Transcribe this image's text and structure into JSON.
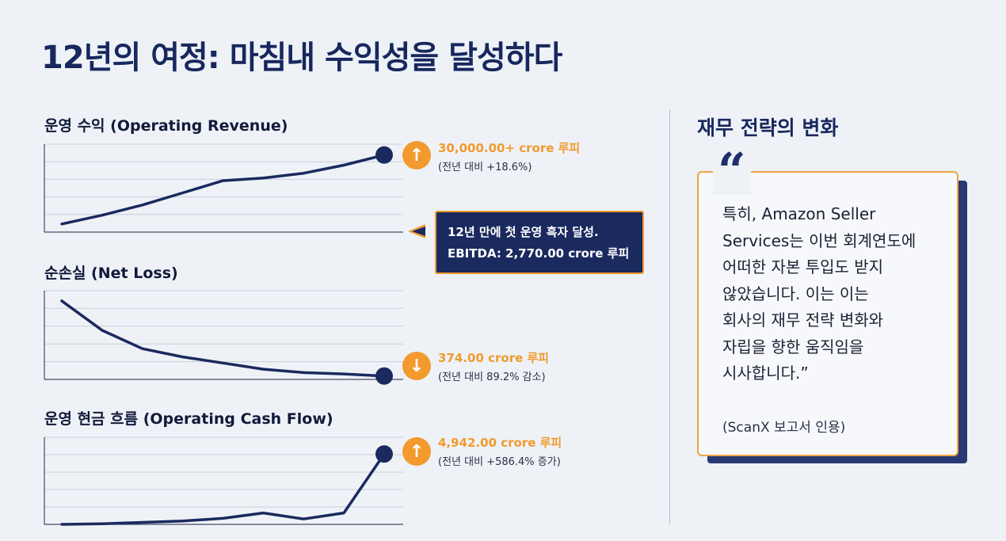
{
  "title": "12년의 여정: 마침내 수익성을 달성하다",
  "colors": {
    "navy": "#1a2a5e",
    "orange": "#f29a2e",
    "grid": "#c9ced9"
  },
  "chart_data": [
    {
      "type": "line",
      "title": "운영 수익 (Operating Revenue)",
      "values": [
        0.12,
        0.25,
        0.4,
        0.58,
        0.76,
        0.8,
        0.87,
        0.99,
        1.14
      ],
      "ylim": [
        0,
        1.3
      ],
      "value_label": "30,000.00+ crore 루피",
      "change_label": "(전년 대비 +18.6%)",
      "trend": "up",
      "icon": "arrow-up-icon"
    },
    {
      "type": "line",
      "title": "순손실 (Net Loss)",
      "values": [
        1.15,
        0.72,
        0.45,
        0.33,
        0.24,
        0.15,
        0.1,
        0.08,
        0.05
      ],
      "ylim": [
        0,
        1.3
      ],
      "value_label": "374.00 crore 루피",
      "change_label": "(전년 대비 89.2% 감소)",
      "trend": "down",
      "icon": "arrow-down-icon"
    },
    {
      "type": "line",
      "title": "운영 현금 흐름 (Operating Cash Flow)",
      "values": [
        0.0,
        0.01,
        0.03,
        0.05,
        0.09,
        0.17,
        0.08,
        0.17,
        1.05
      ],
      "ylim": [
        0,
        1.3
      ],
      "value_label": "4,942.00 crore 루피",
      "change_label": "(전년 대비 +586.4% 증가)",
      "trend": "up",
      "icon": "arrow-up-icon"
    }
  ],
  "callout": {
    "line1": "12년 만에 첫 운영 흑자 달성.",
    "line2": "EBITDA: 2,770.00 crore 루피"
  },
  "sidebar": {
    "title": "재무 전략의 변화",
    "quote_mark": "“",
    "quote": "특히, Amazon Seller\nServices는 이번 회계연도에\n어떠한 자본 투입도 받지\n않았습니다. 이는  이는\n회사의 재무 전략 변화와\n자립을 향한 움직임을\n시사합니다.”",
    "source": "(ScanX 보고서 인용)"
  }
}
